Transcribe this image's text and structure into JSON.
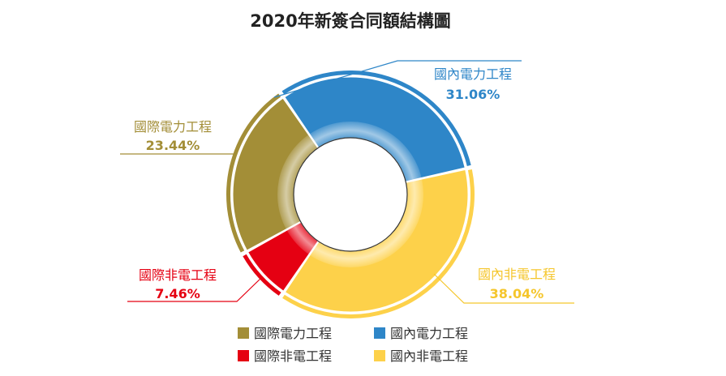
{
  "chart_data": {
    "type": "pie",
    "title": "2020年新簽合同額結構圖",
    "slices": [
      {
        "label": "國內電力工程",
        "value": 31.06,
        "value_label": "31.06%",
        "color": "#2e86c8"
      },
      {
        "label": "國內非電工程",
        "value": 38.04,
        "value_label": "38.04%",
        "color": "#fdd14a"
      },
      {
        "label": "國際非電工程",
        "value": 7.46,
        "value_label": "7.46%",
        "color": "#e50012"
      },
      {
        "label": "國際電力工程",
        "value": 23.44,
        "value_label": "23.44%",
        "color": "#a38e37"
      }
    ],
    "legend": [
      {
        "label": "國際電力工程",
        "color": "#a38e37"
      },
      {
        "label": "國內電力工程",
        "color": "#2e86c8"
      },
      {
        "label": "國際非電工程",
        "color": "#e50012"
      },
      {
        "label": "國內非電工程",
        "color": "#fdd14a"
      }
    ],
    "legend_placement": "bottom",
    "label_colors": {
      "國內電力工程": "#2e86c8",
      "國內非電工程": "#f5c62c",
      "國際非電工程": "#e50012",
      "國際電力工程": "#a38e37"
    }
  }
}
